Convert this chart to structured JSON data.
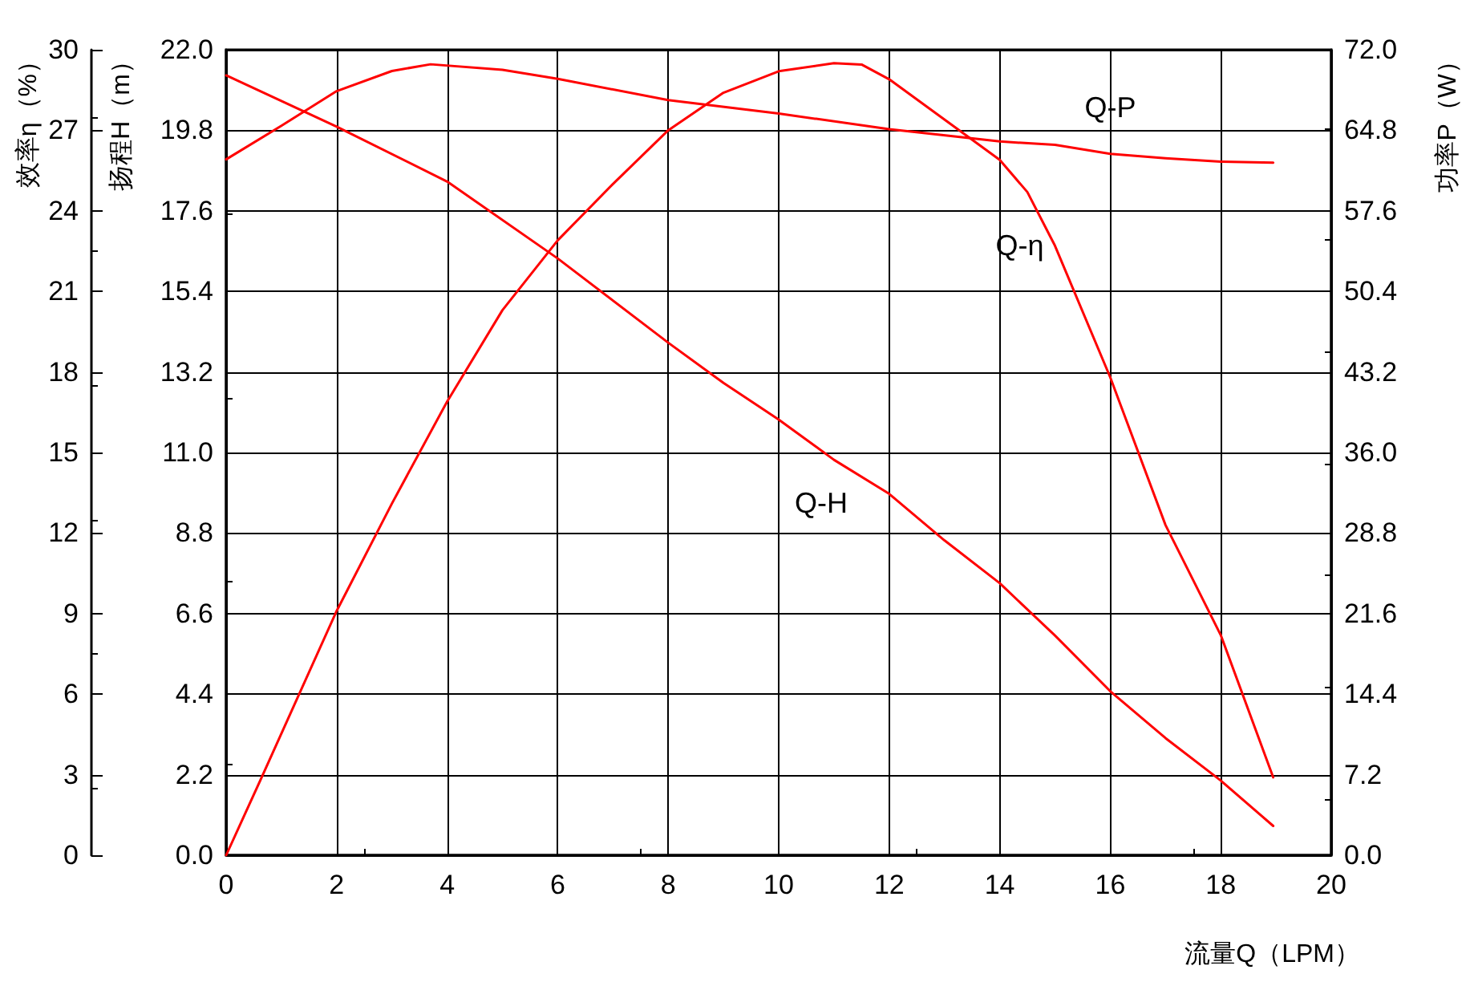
{
  "chart_data": {
    "type": "line",
    "xlabel": "流量Q（LPM）",
    "ylabel": "扬程H（m）",
    "y2label": "功率P（W）",
    "y3label": "效率η（%）",
    "xlim": [
      0,
      20
    ],
    "xticks": [
      0,
      2,
      4,
      6,
      8,
      10,
      12,
      14,
      16,
      18,
      20
    ],
    "ylim": [
      0,
      22
    ],
    "yticks": [
      {
        "value": 0,
        "label": "0.0"
      },
      2.2,
      4.4,
      6.6,
      8.8,
      {
        "value": 11,
        "label": "11.0"
      },
      13.2,
      15.4,
      17.6,
      19.8,
      {
        "value": 22,
        "label": "22.0"
      }
    ],
    "y2lim": [
      0,
      72
    ],
    "y2ticks": [
      {
        "value": 0,
        "label": "0.0"
      },
      7.2,
      14.4,
      21.6,
      28.8,
      {
        "value": 36,
        "label": "36.0"
      },
      43.2,
      50.4,
      57.6,
      64.8,
      {
        "value": 72,
        "label": "72.0"
      }
    ],
    "y3lim": [
      0,
      30
    ],
    "y3ticks": [
      0,
      3,
      6,
      9,
      12,
      15,
      18,
      21,
      24,
      27,
      30
    ],
    "grid": true,
    "series": [
      {
        "name": "Q-H",
        "color": "#ff0000",
        "x": [
          0,
          2,
          4,
          6,
          8,
          9,
          10,
          11,
          12,
          13,
          14,
          15,
          16,
          17,
          18,
          18.95
        ],
        "values": [
          21.3,
          19.9,
          18.4,
          16.3,
          14.0,
          12.9,
          11.9,
          10.8,
          9.87,
          8.6,
          7.43,
          6.0,
          4.48,
          3.2,
          2.04,
          0.8
        ]
      },
      {
        "name": "Q-P",
        "color": "#ff0000",
        "axis": "y2",
        "x": [
          0,
          1,
          2,
          3,
          3.7,
          5,
          6,
          8,
          10,
          12,
          14,
          15,
          16,
          17,
          18,
          18.95
        ],
        "values": [
          62.2,
          65.2,
          68.3,
          70.1,
          70.7,
          70.2,
          69.4,
          67.5,
          66.3,
          64.9,
          63.8,
          63.5,
          62.7,
          62.3,
          62.0,
          61.9
        ]
      },
      {
        "name": "Q-η",
        "color": "#ff0000",
        "axis": "y3",
        "x": [
          0,
          0.62,
          2,
          3,
          4,
          5,
          6,
          7,
          8,
          9,
          10,
          11,
          11.5,
          12,
          13,
          14,
          14.5,
          15,
          16,
          17,
          18,
          18.95
        ],
        "values": [
          0,
          2.8,
          9.1,
          13.1,
          16.9,
          20.3,
          22.9,
          25.0,
          27.0,
          28.4,
          29.2,
          29.5,
          29.45,
          28.9,
          27.4,
          25.9,
          24.7,
          22.7,
          17.8,
          12.3,
          8.2,
          2.9
        ]
      }
    ]
  }
}
